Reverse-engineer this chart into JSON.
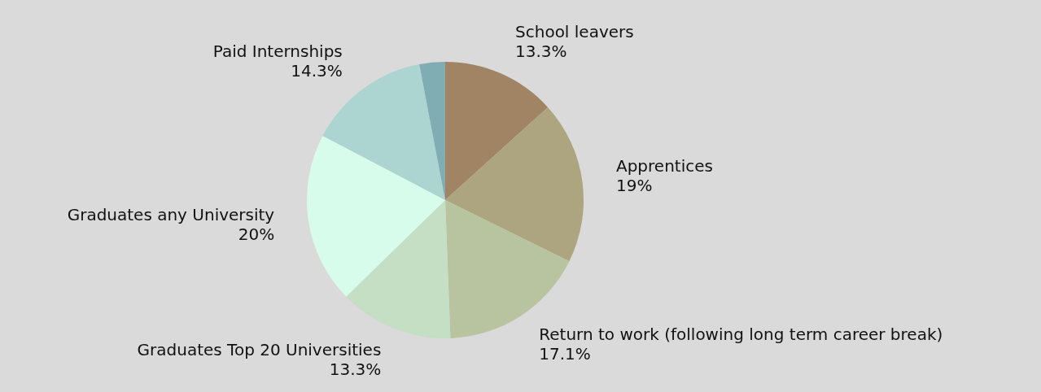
{
  "chart_data": {
    "type": "pie",
    "categories": [
      "School leavers",
      "Apprentices",
      "Return to work (following long term career break)",
      "Graduates Top 20 Universities",
      "Graduates any University",
      "Paid Internships",
      null
    ],
    "values": [
      13.3,
      19,
      17.1,
      13.3,
      20,
      14.3,
      3.0
    ],
    "value_labels": [
      "13.3%",
      "19%",
      "17.1%",
      "13.3%",
      "20%",
      "14.3%",
      null
    ],
    "colors": [
      "#a08464",
      "#aca57f",
      "#b8c4a0",
      "#c4dfc4",
      "#d8fcec",
      "#acd4d0",
      "#80acb4"
    ]
  }
}
